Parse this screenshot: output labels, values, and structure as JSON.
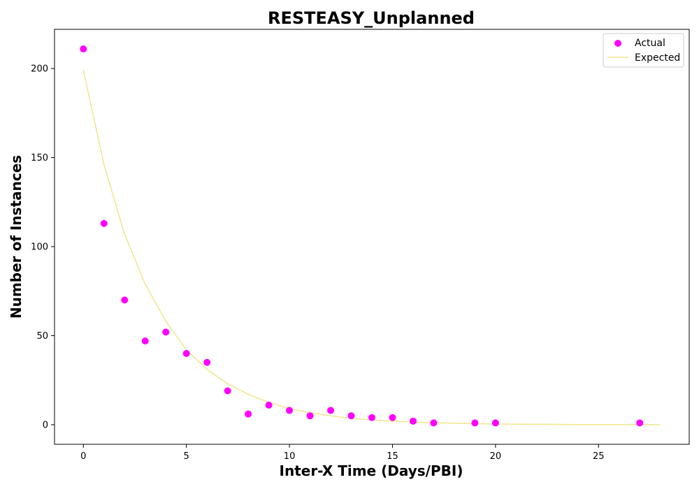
{
  "chart_data": {
    "type": "scatter",
    "title": "RESTEASY_Unplanned",
    "xlabel": "Inter-X Time (Days/PBI)",
    "ylabel": "Number of Instances",
    "xlim": [
      -1.4,
      29.4
    ],
    "ylim": [
      -11,
      222
    ],
    "xticks": [
      0,
      5,
      10,
      15,
      20,
      25
    ],
    "yticks": [
      0,
      50,
      100,
      150,
      200
    ],
    "grid": false,
    "legend_position": "top-right",
    "series": [
      {
        "name": "Actual",
        "kind": "scatter",
        "color": "#ff00ff",
        "x": [
          0,
          1,
          2,
          3,
          4,
          5,
          6,
          7,
          8,
          9,
          10,
          11,
          12,
          13,
          14,
          15,
          16,
          17,
          19,
          20,
          27
        ],
        "y": [
          211,
          113,
          70,
          47,
          52,
          40,
          35,
          19,
          6,
          11,
          8,
          5,
          8,
          5,
          4,
          4,
          2,
          1,
          1,
          1,
          1
        ]
      },
      {
        "name": "Expected",
        "kind": "line",
        "color": "#f0e68c",
        "x": [
          0,
          1,
          2,
          3,
          4,
          5,
          6,
          7,
          8,
          9,
          10,
          11,
          12,
          13,
          14,
          15,
          16,
          17,
          18,
          19,
          20,
          21,
          22,
          23,
          24,
          25,
          26,
          27,
          28
        ],
        "y": [
          199,
          146,
          107,
          79,
          58,
          42,
          31,
          23,
          17,
          12.5,
          9,
          6.7,
          5,
          3.6,
          2.7,
          2,
          1.45,
          1.07,
          0.8,
          0.58,
          0.43,
          0.31,
          0.23,
          0.17,
          0.12,
          0.09,
          0.07,
          0.05,
          0.04
        ]
      }
    ]
  }
}
